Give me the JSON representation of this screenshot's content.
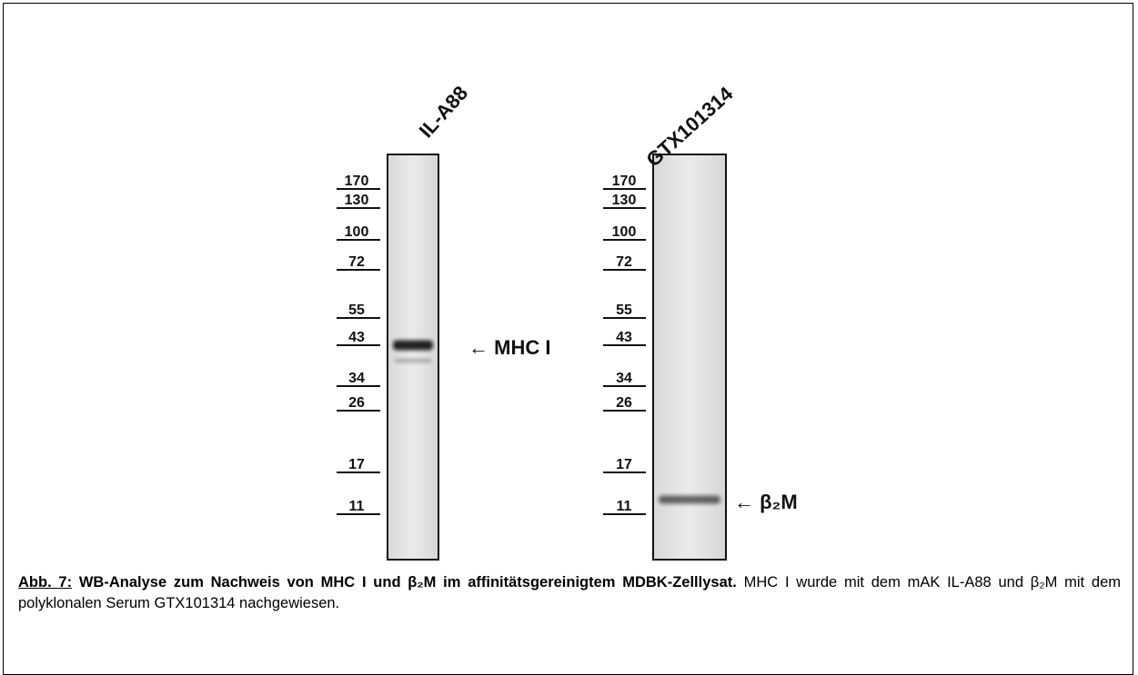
{
  "figure": {
    "lanes": [
      {
        "title": "IL-A88",
        "markers": [
          "170",
          "130",
          "100",
          "72",
          "55",
          "43",
          "34",
          "26",
          "17",
          "11"
        ],
        "band_label": "← MHC I"
      },
      {
        "title": "GTX101314",
        "markers": [
          "170",
          "130",
          "100",
          "72",
          "55",
          "43",
          "34",
          "26",
          "17",
          "11"
        ],
        "band_label": "← β₂M"
      }
    ]
  },
  "caption": {
    "label": "Abb. 7:",
    "title": "WB-Analyse zum Nachweis von MHC I und β₂M im affinitätsgereinigtem MDBK-Zelllysat.",
    "text": "MHC I wurde mit dem mAK IL-A88 und β₂M mit dem polyklonalen Serum GTX101314 nachgewiesen."
  }
}
